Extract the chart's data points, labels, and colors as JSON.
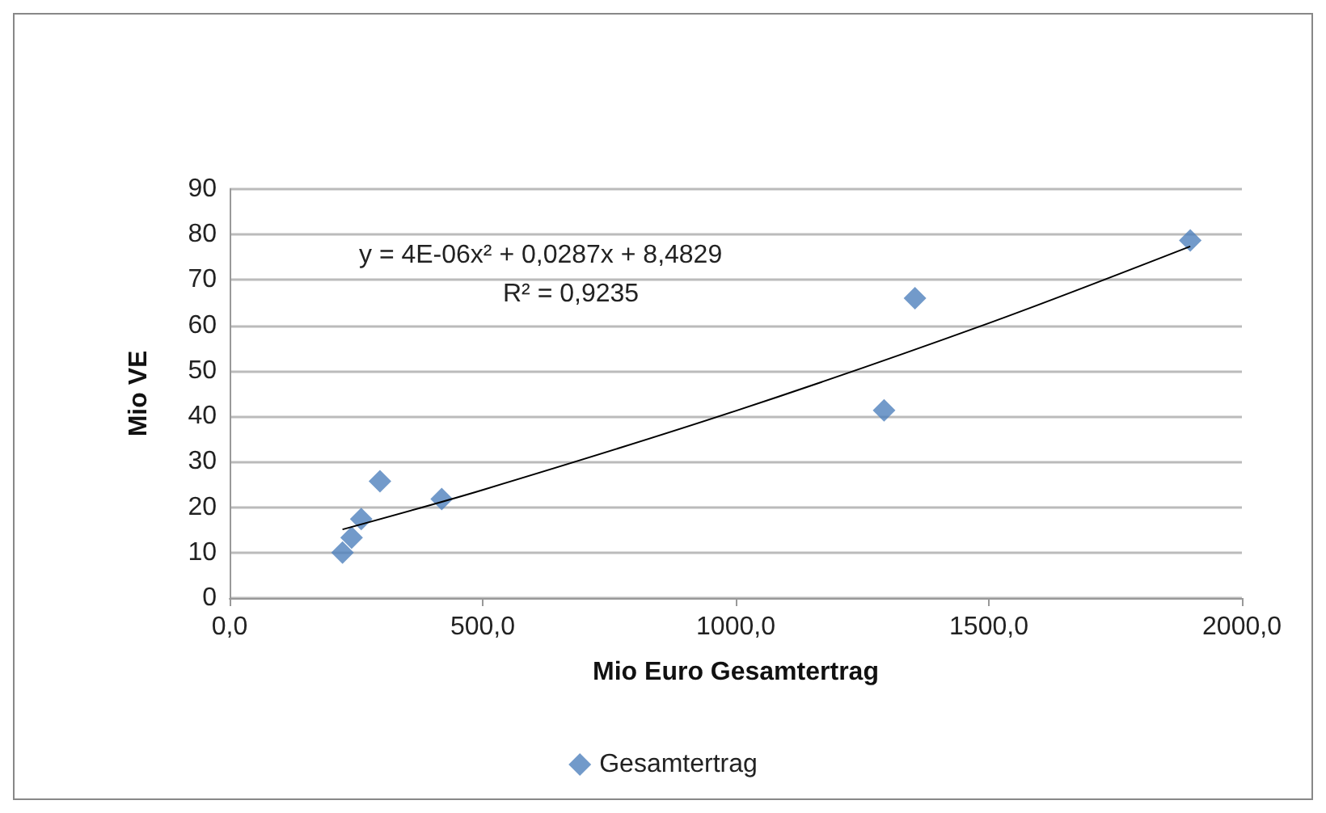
{
  "chart_data": {
    "type": "scatter",
    "xlabel": "Mio Euro Gesamtertrag",
    "ylabel": "Mio VE",
    "annotations": [
      "y = 4E-06x² + 0,0287x + 8,4829",
      "R² = 0,9235"
    ],
    "series": [
      {
        "name": "Gesamtertrag",
        "color": "#4f81bd",
        "x": [
          223,
          241,
          260,
          297,
          419,
          1293,
          1354,
          1898
        ],
        "values": [
          10,
          13.3,
          17.4,
          25.7,
          21.8,
          41.3,
          66,
          78.7
        ]
      },
      {
        "type": "line",
        "marker": "none",
        "color": "#000000",
        "x": [
          223,
          500,
          1000,
          1500,
          1898
        ],
        "values": [
          15.1,
          23.8,
          41.2,
          60.5,
          77.4
        ]
      }
    ],
    "xlim": [
      0,
      2000
    ],
    "xticks": [
      {
        "value": 0,
        "label": "0,0"
      },
      {
        "value": 500,
        "label": "500,0"
      },
      {
        "value": 1000,
        "label": "1000,0"
      },
      {
        "value": 1500,
        "label": "1500,0"
      },
      {
        "value": 2000,
        "label": "2000,0"
      }
    ],
    "ylim": [
      0,
      90
    ],
    "yticks": [
      0,
      10,
      20,
      30,
      40,
      50,
      60,
      70,
      80,
      90
    ],
    "grid": "y",
    "legend": "bottom",
    "marker": "diamond"
  }
}
